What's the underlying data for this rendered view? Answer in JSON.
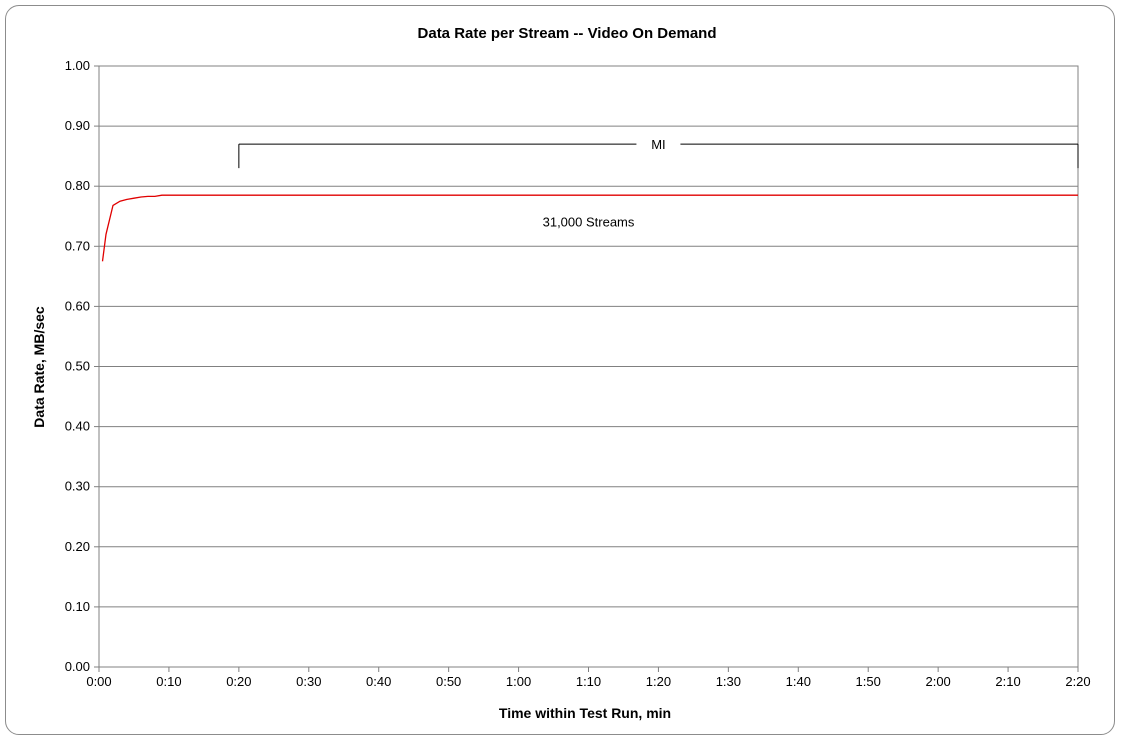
{
  "chart_data": {
    "type": "line",
    "title": "Data Rate per Stream -- Video On Demand",
    "xlabel": "Time within Test Run, min",
    "ylabel": "Data Rate, MB/sec",
    "xlim": [
      0,
      140
    ],
    "ylim": [
      0,
      1.0
    ],
    "x_ticks": [
      0,
      10,
      20,
      30,
      40,
      50,
      60,
      70,
      80,
      90,
      100,
      110,
      120,
      130,
      140
    ],
    "x_tick_labels": [
      "0:00",
      "0:10",
      "0:20",
      "0:30",
      "0:40",
      "0:50",
      "1:00",
      "1:10",
      "1:20",
      "1:30",
      "1:40",
      "1:50",
      "2:00",
      "2:10",
      "2:20"
    ],
    "y_ticks": [
      0,
      0.1,
      0.2,
      0.3,
      0.4,
      0.5,
      0.6,
      0.7,
      0.8,
      0.9,
      1.0
    ],
    "y_tick_labels": [
      "0.00",
      "0.10",
      "0.20",
      "0.30",
      "0.40",
      "0.50",
      "0.60",
      "0.70",
      "0.80",
      "0.90",
      "1.00"
    ],
    "grid": "horizontal",
    "series": [
      {
        "color": "#e00000",
        "x": [
          0.5,
          1,
          2,
          3,
          4,
          5,
          6,
          7,
          8,
          9,
          10,
          20,
          30,
          40,
          50,
          60,
          70,
          80,
          90,
          100,
          110,
          120,
          130,
          140
        ],
        "y": [
          0.675,
          0.72,
          0.768,
          0.775,
          0.778,
          0.78,
          0.782,
          0.783,
          0.783,
          0.785,
          0.785,
          0.785,
          0.785,
          0.785,
          0.785,
          0.785,
          0.785,
          0.785,
          0.785,
          0.785,
          0.785,
          0.785,
          0.785,
          0.785
        ]
      }
    ],
    "annotations": [
      {
        "text": "31,000 Streams",
        "x": 70,
        "y": 0.74
      },
      {
        "text": "MI",
        "bracket_start": 20,
        "bracket_end": 140,
        "y": 0.87
      }
    ]
  }
}
